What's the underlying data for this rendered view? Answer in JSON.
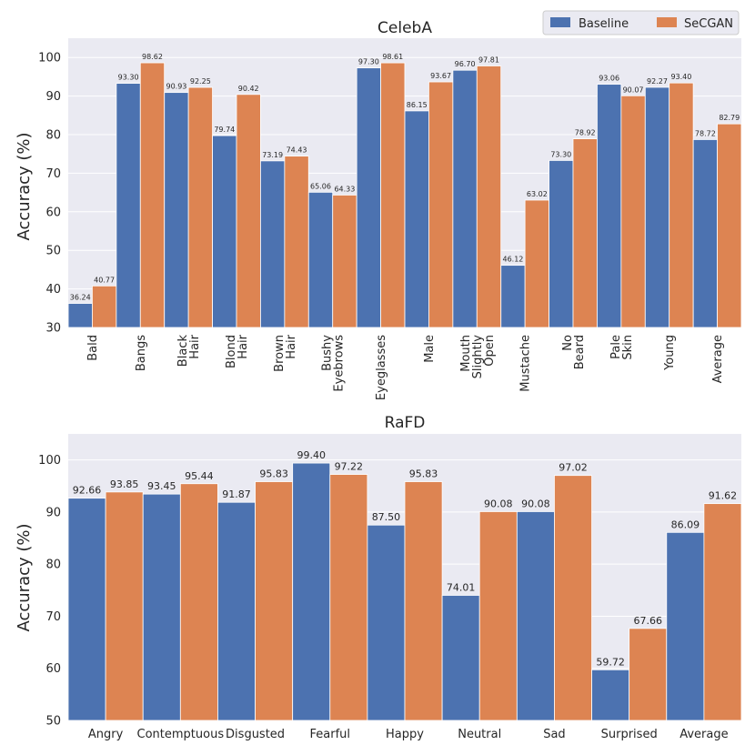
{
  "colors": {
    "baseline": "#4c72b0",
    "secgan": "#dd8452"
  },
  "legend": {
    "baseline_label": "Baseline",
    "secgan_label": "SeCGAN",
    "location": "top-right"
  },
  "chart_data": [
    {
      "type": "bar",
      "title": "CelebA",
      "xlabel": "",
      "ylabel": "Accuracy (%)",
      "ylim": [
        30,
        105
      ],
      "yticks": [
        30,
        40,
        50,
        60,
        70,
        80,
        90,
        100
      ],
      "grid": true,
      "categories": [
        "Bald",
        "Bangs",
        "Black Hair",
        "Blond Hair",
        "Brown Hair",
        "Bushy Eyebrows",
        "Eyeglasses",
        "Male",
        "Mouth Slightly Open",
        "Mustache",
        "No Beard",
        "Pale Skin",
        "Young",
        "Average"
      ],
      "series": [
        {
          "name": "Baseline",
          "values": [
            36.24,
            93.3,
            90.93,
            79.74,
            73.19,
            65.06,
            97.3,
            86.15,
            96.7,
            46.12,
            73.3,
            93.06,
            92.27,
            78.72
          ],
          "labels": [
            "36.24",
            "93.30",
            "90.93",
            "79.74",
            "73.19",
            "65.06",
            "97.30",
            "86.15",
            "96.70",
            "46.12",
            "73.30",
            "93.06",
            "92.27",
            "78.72"
          ]
        },
        {
          "name": "SeCGAN",
          "values": [
            40.77,
            98.62,
            92.25,
            90.42,
            74.43,
            64.33,
            98.61,
            93.67,
            97.81,
            63.02,
            78.92,
            90.07,
            93.4,
            82.79
          ],
          "labels": [
            "40.77",
            "98.62",
            "92.25",
            "90.42",
            "74.43",
            "64.33",
            "98.61",
            "93.67",
            "97.81",
            "63.02",
            "78.92",
            "90.07",
            "93.40",
            "82.79"
          ]
        }
      ]
    },
    {
      "type": "bar",
      "title": "RaFD",
      "xlabel": "",
      "ylabel": "Accuracy (%)",
      "ylim": [
        50,
        105
      ],
      "yticks": [
        50,
        60,
        70,
        80,
        90,
        100
      ],
      "grid": true,
      "categories": [
        "Angry",
        "Contemptuous",
        "Disgusted",
        "Fearful",
        "Happy",
        "Neutral",
        "Sad",
        "Surprised",
        "Average"
      ],
      "series": [
        {
          "name": "Baseline",
          "values": [
            92.66,
            93.45,
            91.87,
            99.4,
            87.5,
            74.01,
            90.08,
            59.72,
            86.09
          ],
          "labels": [
            "92.66",
            "93.45",
            "91.87",
            "99.40",
            "87.50",
            "74.01",
            "90.08",
            "59.72",
            "86.09"
          ]
        },
        {
          "name": "SeCGAN",
          "values": [
            93.85,
            95.44,
            95.83,
            97.22,
            95.83,
            90.08,
            97.02,
            67.66,
            91.62
          ],
          "labels": [
            "93.85",
            "95.44",
            "95.83",
            "97.22",
            "95.83",
            "90.08",
            "97.02",
            "67.66",
            "91.62"
          ]
        }
      ]
    }
  ]
}
